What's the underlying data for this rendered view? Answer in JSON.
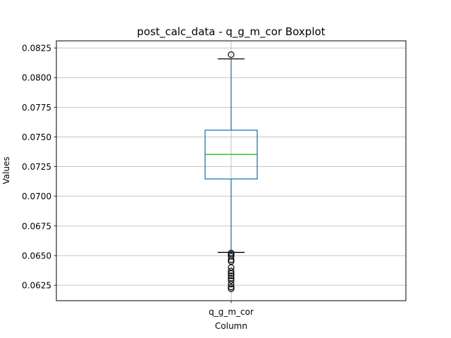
{
  "chart_data": {
    "type": "boxplot",
    "title": "post_calc_data - q_g_m_cor Boxplot",
    "xlabel": "Column",
    "ylabel": "Values",
    "categories": [
      "q_g_m_cor"
    ],
    "ylim": [
      0.0612,
      0.0831
    ],
    "yticks": [
      0.0625,
      0.065,
      0.0675,
      0.07,
      0.0725,
      0.075,
      0.0775,
      0.08,
      0.0825
    ],
    "ytick_labels": [
      "0.0625",
      "0.0650",
      "0.0675",
      "0.0700",
      "0.0725",
      "0.0750",
      "0.0775",
      "0.0800",
      "0.0825"
    ],
    "grid": true,
    "boxes": [
      {
        "name": "q_g_m_cor",
        "whisker_low": 0.06527,
        "q1": 0.07146,
        "median": 0.07353,
        "q3": 0.07557,
        "whisker_high": 0.08158,
        "outliers": [
          0.08194,
          0.06522,
          0.0651,
          0.06495,
          0.06465,
          0.0645,
          0.064,
          0.0637,
          0.0635,
          0.0633,
          0.0631,
          0.0629,
          0.0626,
          0.06235,
          0.0622
        ]
      }
    ],
    "colors": {
      "box": "#1f77b4",
      "median": "#2ca02c",
      "cap": "#000000",
      "grid": "#b0b0b0",
      "axes": "#000000"
    }
  }
}
